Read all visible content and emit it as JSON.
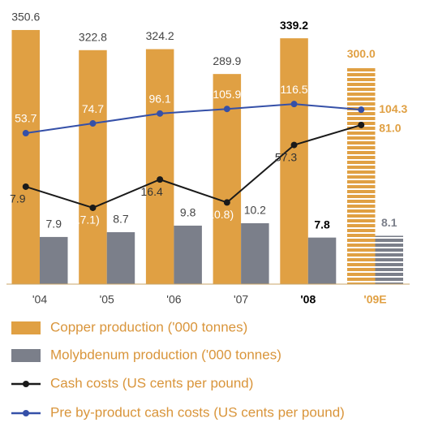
{
  "chart_data": {
    "type": "bar",
    "categories": [
      "'04",
      "'05",
      "'06",
      "'07",
      "'08",
      "'09E"
    ],
    "series": [
      {
        "name": "Copper production ('000 tonnes)",
        "kind": "bar",
        "color": "#e0a043",
        "values": [
          350.6,
          322.8,
          324.2,
          289.9,
          339.2,
          300.0
        ],
        "value_labels": [
          "350.6",
          "322.8",
          "324.2",
          "289.9",
          "339.2",
          "300.0"
        ],
        "ylim": [
          0,
          392
        ]
      },
      {
        "name": "Molybdenum production ('000 tonnes)",
        "kind": "bar",
        "color": "#7b7f8a",
        "values": [
          7.9,
          8.7,
          9.8,
          10.2,
          7.8,
          8.1
        ],
        "ylim": [
          0,
          47.6
        ]
      },
      {
        "name": "Cash costs (US cents per pound)",
        "kind": "line",
        "color": "#1a1a1a",
        "values": [
          7.9,
          -17.1,
          16.4,
          -10.8,
          57.3,
          81.0
        ],
        "value_labels": [
          "7.9",
          "(17.1)",
          "16.4",
          "(10.8)",
          "57.3",
          "81.0"
        ],
        "ylim": [
          -107.5,
          229
        ]
      },
      {
        "name": "Pre by-product cash costs (US cents per pound)",
        "kind": "line",
        "color": "#3550a8",
        "values": [
          53.7,
          74.7,
          96.1,
          105.9,
          116.5,
          104.3
        ],
        "ylim": [
          -272,
          341
        ]
      }
    ]
  }
}
